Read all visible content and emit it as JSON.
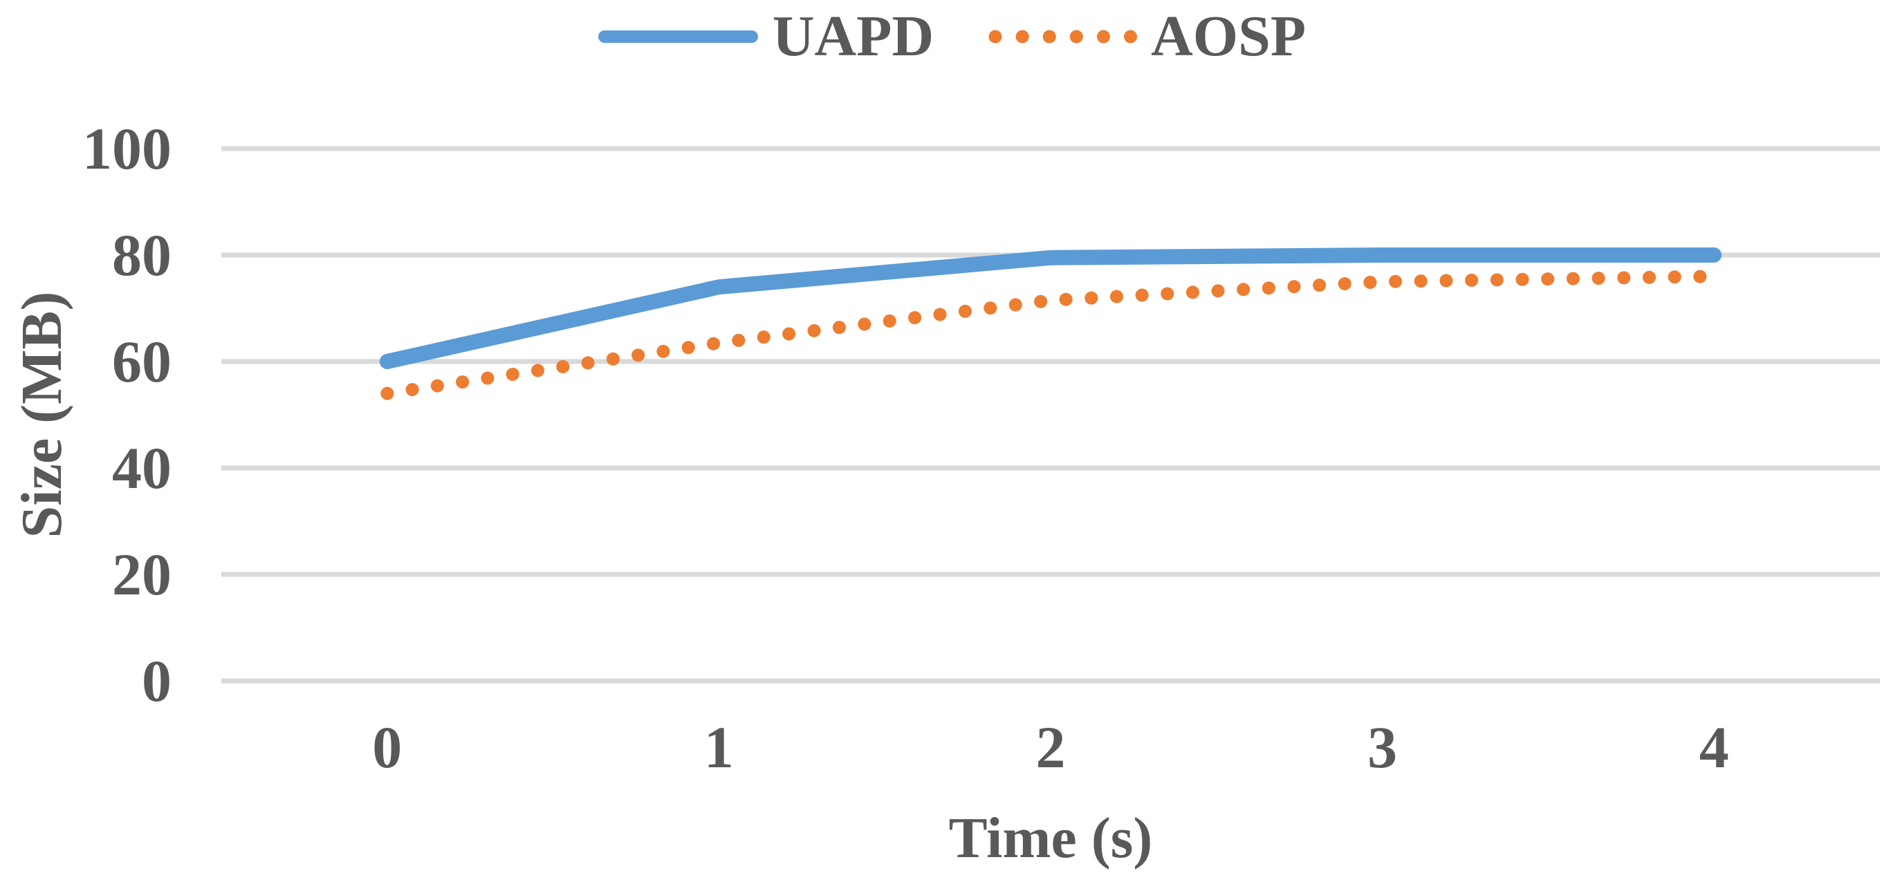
{
  "chart_data": {
    "type": "line",
    "title": "",
    "xlabel": "Time (s)",
    "ylabel": "Size (MB)",
    "x": [
      0,
      1,
      2,
      3,
      4
    ],
    "xticks": [
      "0",
      "1",
      "2",
      "3",
      "4"
    ],
    "yticks": [
      0,
      20,
      40,
      60,
      80,
      100
    ],
    "ylim": [
      0,
      100
    ],
    "grid": true,
    "legend_position": "top",
    "gridline_color": "#D9D9D9",
    "text_color": "#595959",
    "background_color": "#FFFFFF",
    "series": [
      {
        "name": "UAPD",
        "style": "solid",
        "color": "#5B9BD5",
        "values": [
          60,
          74,
          79.5,
          80,
          80
        ]
      },
      {
        "name": "AOSP",
        "style": "dotted",
        "color": "#ED7D31",
        "values": [
          54,
          63.5,
          71.5,
          75,
          76
        ]
      }
    ]
  }
}
